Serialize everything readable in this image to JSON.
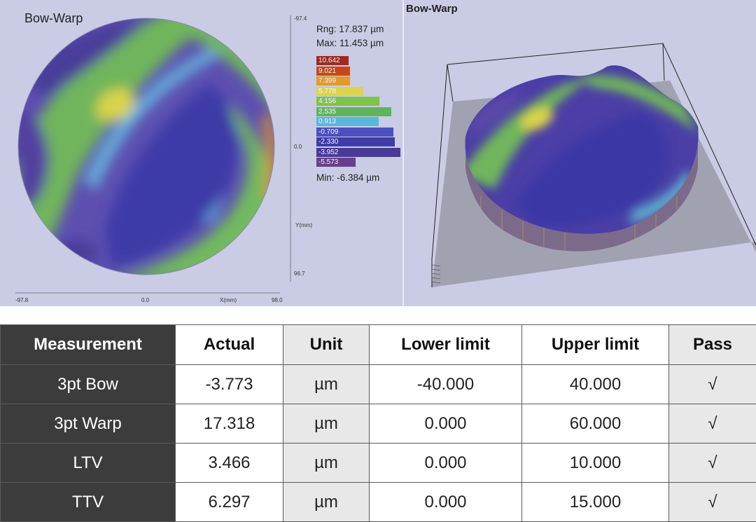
{
  "map2d": {
    "title": "Bow-Warp",
    "y_top": "-97.4",
    "y_mid": "0.0",
    "y_axis": "Y(mm)",
    "y_bottom": "96.7",
    "x_left": "-97.8",
    "x_mid": "0.0",
    "x_axis": "X(mm)",
    "x_right": "98.0"
  },
  "legend": {
    "rng": "Rng: 17.837 µm",
    "max": "Max: 11.453 µm",
    "min": "Min: -6.384 µm",
    "scale": [
      {
        "label": "10.642",
        "color": "#9c2c22",
        "level": 0.38
      },
      {
        "label": "9.021",
        "color": "#c8461c",
        "level": 0.4
      },
      {
        "label": "7.399",
        "color": "#e39a2c",
        "level": 0.4
      },
      {
        "label": "5.778",
        "color": "#dcd44a",
        "level": 0.56
      },
      {
        "label": "4.156",
        "color": "#7fc24c",
        "level": 0.75
      },
      {
        "label": "2.535",
        "color": "#5cb55c",
        "level": 0.89
      },
      {
        "label": "0.913",
        "color": "#58b8d8",
        "level": 0.74
      },
      {
        "label": "-0.709",
        "color": "#4b4fc2",
        "level": 0.92
      },
      {
        "label": "-2.330",
        "color": "#3e3ca8",
        "level": 0.93
      },
      {
        "label": "-3.952",
        "color": "#4a3a98",
        "level": 1.0
      },
      {
        "label": "-5.573",
        "color": "#6a3e8e",
        "level": 0.47
      }
    ]
  },
  "map3d": {
    "title": "Bow-Warp"
  },
  "table": {
    "headers": [
      "Measurement",
      "Actual",
      "Unit",
      "Lower limit",
      "Upper limit",
      "Pass"
    ],
    "rows": [
      [
        "3pt Bow",
        "-3.773",
        "µm",
        "-40.000",
        "40.000",
        "√"
      ],
      [
        "3pt Warp",
        "17.318",
        "µm",
        "0.000",
        "60.000",
        "√"
      ],
      [
        "LTV",
        "3.466",
        "µm",
        "0.000",
        "10.000",
        "√"
      ],
      [
        "TTV",
        "6.297",
        "µm",
        "0.000",
        "15.000",
        "√"
      ]
    ]
  },
  "colors": {
    "panel_bg": "#c9cce4",
    "header_dark": "#3c3c3c",
    "cell_grey": "#e8e8e8"
  }
}
